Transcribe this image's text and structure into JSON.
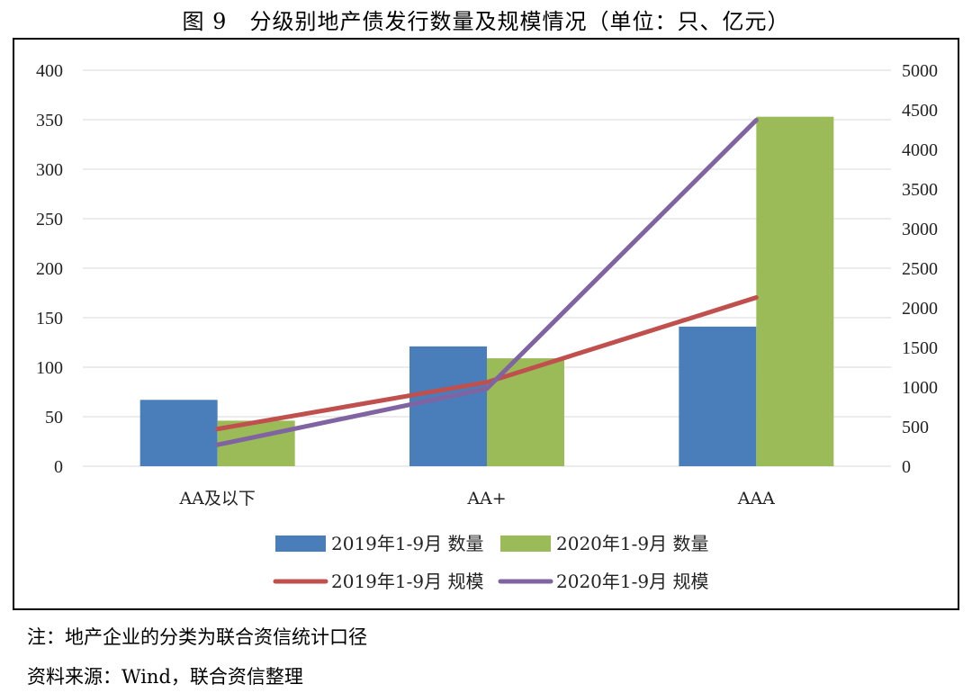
{
  "title": "图 9　分级别地产债发行数量及规模情况（单位：只、亿元）",
  "notes": {
    "note1": "注：地产企业的分类为联合资信统计口径",
    "note2": "资料来源：Wind，联合资信整理"
  },
  "colors": {
    "bar2019": "#4a7ebb",
    "bar2020": "#9bbb59",
    "line2019": "#c0504d",
    "line2020": "#8064a2",
    "grid": "#d9d9d9"
  },
  "chart_data": {
    "type": "bar",
    "categories": [
      "AA及以下",
      "AA+",
      "AAA"
    ],
    "y_left": {
      "range": [
        0,
        400
      ],
      "ticks": [
        0,
        50,
        100,
        150,
        200,
        250,
        300,
        350,
        400
      ]
    },
    "y_right": {
      "range": [
        0,
        5000
      ],
      "ticks": [
        0,
        500,
        1000,
        1500,
        2000,
        2500,
        3000,
        3500,
        4000,
        4500,
        5000
      ]
    },
    "grid": true,
    "legend_position": "bottom",
    "bar_series": [
      {
        "name": "2019年1-9月 数量",
        "values": [
          67,
          121,
          141
        ],
        "axis": "left"
      },
      {
        "name": "2020年1-9月 数量",
        "values": [
          46,
          109,
          353
        ],
        "axis": "left"
      }
    ],
    "line_series": [
      {
        "name": "2019年1-9月 规模",
        "values": [
          470,
          1060,
          2130
        ],
        "axis": "right"
      },
      {
        "name": "2020年1-9月 规模",
        "values": [
          270,
          980,
          4370
        ],
        "axis": "right"
      }
    ]
  }
}
